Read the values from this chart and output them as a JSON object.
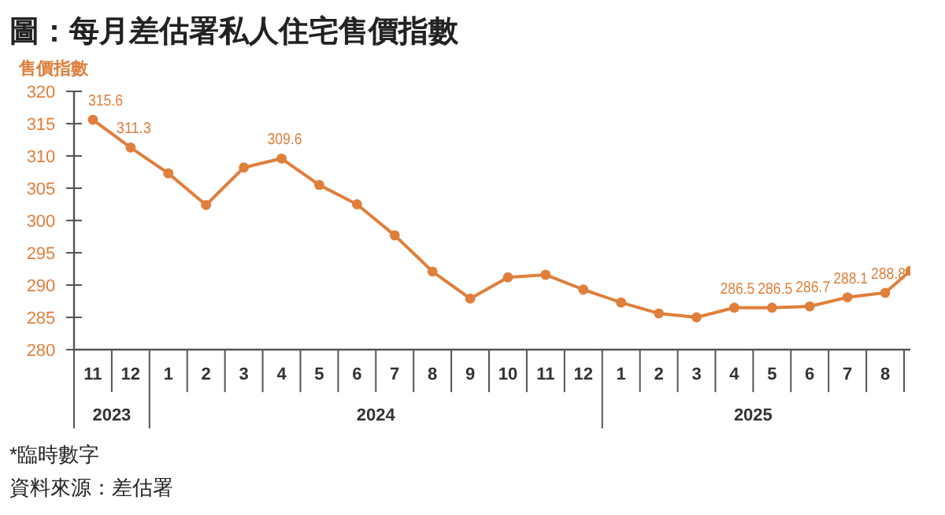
{
  "chart_data": {
    "type": "line",
    "title": "圖：每月差估署私人住宅售價指數",
    "ylabel": "售價指數",
    "x": [
      "2023-11",
      "2023-12",
      "2024-01",
      "2024-02",
      "2024-03",
      "2024-04",
      "2024-05",
      "2024-06",
      "2024-07",
      "2024-08",
      "2024-09",
      "2024-10",
      "2024-11",
      "2024-12",
      "2025-01",
      "2025-02",
      "2025-03",
      "2025-04",
      "2025-05",
      "2025-06",
      "2025-07",
      "2025-08",
      "2025-08-21"
    ],
    "series": [
      {
        "color": "#e07f3c",
        "values": [
          315.6,
          311.3,
          307.3,
          302.4,
          308.2,
          309.6,
          305.5,
          302.5,
          297.7,
          292.1,
          287.9,
          291.2,
          291.6,
          289.3,
          287.3,
          285.6,
          285.0,
          286.5,
          286.5,
          286.7,
          288.1,
          288.8,
          292.2
        ],
        "value_labels": [
          "315.6",
          "311.3",
          null,
          null,
          null,
          "309.6",
          null,
          null,
          null,
          null,
          null,
          null,
          null,
          null,
          null,
          null,
          null,
          "286.5",
          "286.5",
          "286.7",
          "288.1",
          "288.8",
          null
        ]
      }
    ],
    "xlim": [
      "2023-10-16",
      "2025-08-21"
    ],
    "xticks": [
      {
        "value": "2023-11",
        "label": "11"
      },
      {
        "value": "2023-12",
        "label": "12"
      },
      {
        "value": "2024-01",
        "label": "1"
      },
      {
        "value": "2024-02",
        "label": "2"
      },
      {
        "value": "2024-03",
        "label": "3"
      },
      {
        "value": "2024-04",
        "label": "4"
      },
      {
        "value": "2024-05",
        "label": "5"
      },
      {
        "value": "2024-06",
        "label": "6"
      },
      {
        "value": "2024-07",
        "label": "7"
      },
      {
        "value": "2024-08",
        "label": "8"
      },
      {
        "value": "2024-09",
        "label": "9"
      },
      {
        "value": "2024-10",
        "label": "10"
      },
      {
        "value": "2024-11",
        "label": "11"
      },
      {
        "value": "2024-12",
        "label": "12"
      },
      {
        "value": "2025-01",
        "label": "1"
      },
      {
        "value": "2025-02",
        "label": "2"
      },
      {
        "value": "2025-03",
        "label": "3"
      },
      {
        "value": "2025-04",
        "label": "4"
      },
      {
        "value": "2025-05",
        "label": "5"
      },
      {
        "value": "2025-06",
        "label": "6"
      },
      {
        "value": "2025-07",
        "label": "7"
      },
      {
        "value": "2025-08",
        "label": "8"
      }
    ],
    "ylim": [
      280,
      320
    ],
    "yticks": [
      280,
      285,
      290,
      295,
      300,
      305,
      310,
      315,
      320
    ],
    "marker": "circle",
    "line_style": "solid",
    "grid": false,
    "annotations": [
      "2023",
      "2024",
      "2025",
      "*臨時數字",
      "資料來源：差估署"
    ]
  }
}
